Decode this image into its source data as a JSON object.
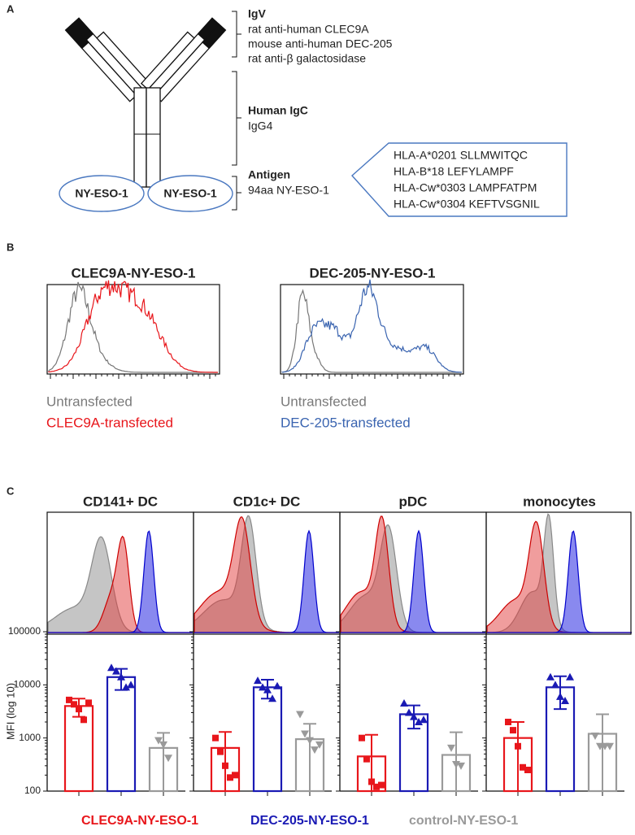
{
  "panel_a": {
    "label": "A",
    "igv": {
      "title": "IgV",
      "lines": [
        "rat anti-human CLEC9A",
        "mouse anti-human DEC-205",
        "rat anti-β galactosidase"
      ]
    },
    "igc": {
      "title": "Human IgC",
      "lines": [
        "IgG4"
      ]
    },
    "antigen": {
      "title": "Antigen",
      "lines": [
        "94aa NY-ESO-1"
      ]
    },
    "domains": [
      "NY-ESO-1",
      "NY-ESO-1"
    ],
    "epitopes": [
      "HLA-A*0201 SLLMWITQC",
      "HLA-B*18 LEFYLAMPF",
      "HLA-Cw*0303 LAMPFATPM",
      "HLA-Cw*0304 KEFTVSGNIL"
    ]
  },
  "panel_b": {
    "label": "B",
    "plots": [
      {
        "title": "CLEC9A-NY-ESO-1",
        "legend": [
          "Untransfected",
          "CLEC9A-transfected"
        ]
      },
      {
        "title": "DEC-205-NY-ESO-1",
        "legend": [
          "Untransfected",
          "DEC-205-transfected"
        ]
      }
    ]
  },
  "panel_c": {
    "label": "C"
  },
  "legend": [
    {
      "name": "CLEC9A-NY-ESO-1",
      "color": "#e8161b",
      "marker": "square"
    },
    {
      "name": "DEC-205-NY-ESO-1",
      "color": "#1a1ab4",
      "marker": "triangle-up"
    },
    {
      "name": "control-NY-ESO-1",
      "color": "#9a9a9a",
      "marker": "triangle-down"
    }
  ],
  "chart_data": [
    {
      "type": "bar",
      "title": "CD141+ DC",
      "ylabel": "MFI (log 10)",
      "log_scale": true,
      "ylim": [
        100,
        100000
      ],
      "yticks": [
        100,
        1000,
        10000,
        100000
      ],
      "values": [
        4000,
        14000,
        650
      ],
      "errors": [
        1500,
        6000,
        600
      ],
      "points": [
        [
          5200,
          4300,
          3500,
          2200,
          4600
        ],
        [
          21000,
          18000,
          14000,
          9000,
          10000
        ],
        [
          900,
          750,
          420
        ]
      ]
    },
    {
      "type": "bar",
      "title": "CD1c+ DC",
      "log_scale": true,
      "ylim": [
        100,
        100000
      ],
      "yticks": [
        100,
        1000,
        10000,
        100000
      ],
      "values": [
        650,
        9000,
        950
      ],
      "errors": [
        650,
        3500,
        900
      ],
      "points": [
        [
          1000,
          550,
          300,
          180,
          200
        ],
        [
          12000,
          9000,
          8000,
          5500,
          9500
        ],
        [
          2800,
          1200,
          900,
          600,
          750
        ]
      ]
    },
    {
      "type": "bar",
      "title": "pDC",
      "log_scale": true,
      "ylim": [
        100,
        100000
      ],
      "yticks": [
        100,
        1000,
        10000,
        100000
      ],
      "values": [
        450,
        2800,
        480
      ],
      "errors": [
        700,
        1300,
        800
      ],
      "points": [
        [
          1000,
          400,
          150,
          120,
          130
        ],
        [
          4500,
          3000,
          2500,
          2000,
          2200
        ],
        [
          650,
          320,
          300
        ]
      ]
    },
    {
      "type": "bar",
      "title": "monocytes",
      "log_scale": true,
      "ylim": [
        100,
        100000
      ],
      "yticks": [
        100,
        1000,
        10000,
        100000
      ],
      "values": [
        1000,
        9000,
        1200
      ],
      "errors": [
        1000,
        5500,
        1600
      ],
      "points": [
        [
          2000,
          1400,
          700,
          280,
          250
        ],
        [
          14000,
          10000,
          6000,
          5000,
          14000
        ],
        [
          1100,
          700,
          700,
          700
        ]
      ]
    }
  ]
}
